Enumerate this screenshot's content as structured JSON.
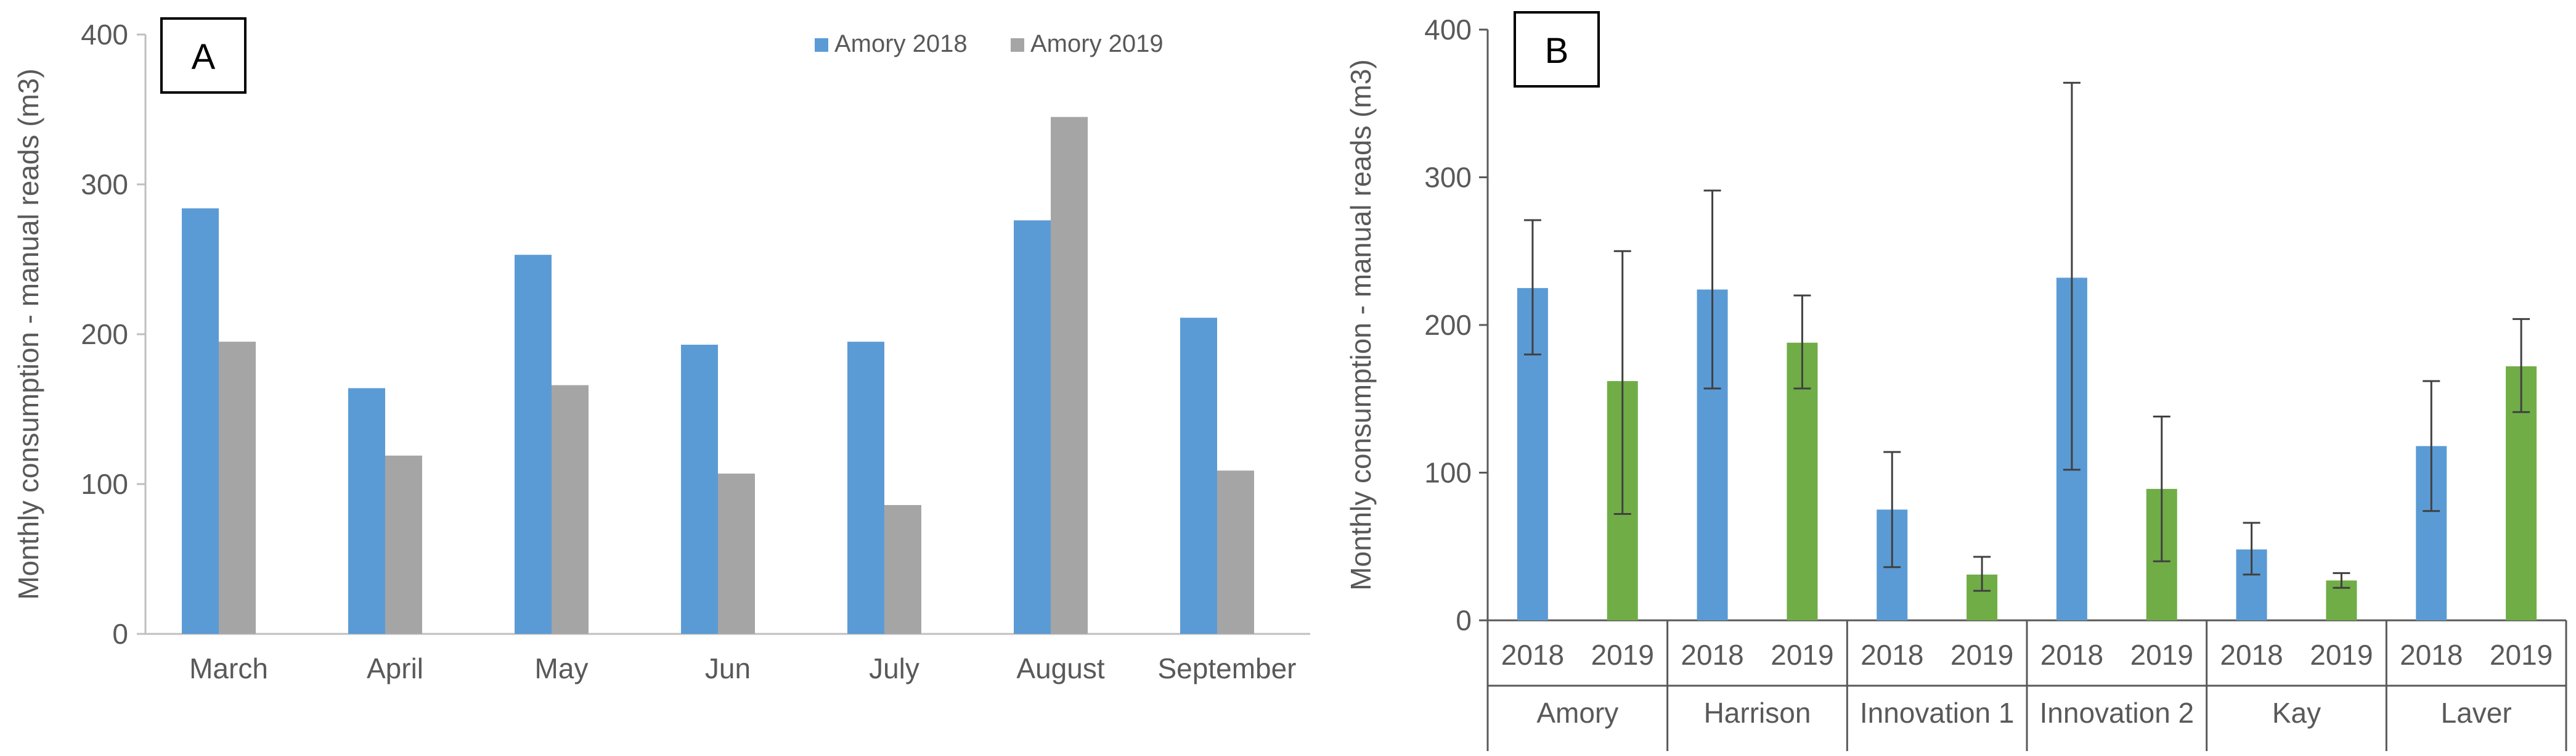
{
  "chart_data": [
    {
      "type": "bar",
      "panel_label": "A",
      "title": "",
      "xlabel": "",
      "ylabel": "Monthly consumption - manual reads (m3)",
      "ylim": [
        0,
        400
      ],
      "yticks": [
        0,
        100,
        200,
        300,
        400
      ],
      "categories": [
        "March",
        "April",
        "May",
        "Jun",
        "July",
        "August",
        "September"
      ],
      "series": [
        {
          "name": "Amory 2018",
          "color": "#5b9bd5",
          "values": [
            284,
            164,
            253,
            193,
            195,
            276,
            211
          ]
        },
        {
          "name": "Amory 2019",
          "color": "#a5a5a5",
          "values": [
            195,
            119,
            166,
            107,
            86,
            345,
            109
          ]
        }
      ],
      "legend": "top-right",
      "grid": false
    },
    {
      "type": "bar",
      "panel_label": "B",
      "title": "",
      "xlabel": "",
      "ylabel": "Monthly consumption - manual reads (m3)",
      "ylim": [
        0,
        400
      ],
      "yticks": [
        0,
        100,
        200,
        300,
        400
      ],
      "groups": [
        {
          "name": "Amory",
          "bars": [
            {
              "label": "2018",
              "value": 225,
              "err_low": 180,
              "err_high": 271,
              "color": "#5b9bd5"
            },
            {
              "label": "2019",
              "value": 162,
              "err_low": 72,
              "err_high": 250,
              "color": "#70ad47"
            }
          ]
        },
        {
          "name": "Harrison",
          "bars": [
            {
              "label": "2018",
              "value": 224,
              "err_low": 157,
              "err_high": 291,
              "color": "#5b9bd5"
            },
            {
              "label": "2019",
              "value": 188,
              "err_low": 157,
              "err_high": 220,
              "color": "#70ad47"
            }
          ]
        },
        {
          "name": "Innovation 1",
          "bars": [
            {
              "label": "2018",
              "value": 75,
              "err_low": 36,
              "err_high": 114,
              "color": "#5b9bd5"
            },
            {
              "label": "2019",
              "value": 31,
              "err_low": 20,
              "err_high": 43,
              "color": "#70ad47"
            }
          ]
        },
        {
          "name": "Innovation 2",
          "bars": [
            {
              "label": "2018",
              "value": 232,
              "err_low": 102,
              "err_high": 364,
              "color": "#5b9bd5"
            },
            {
              "label": "2019",
              "value": 89,
              "err_low": 40,
              "err_high": 138,
              "color": "#70ad47"
            }
          ]
        },
        {
          "name": "Kay",
          "bars": [
            {
              "label": "2018",
              "value": 48,
              "err_low": 31,
              "err_high": 66,
              "color": "#5b9bd5"
            },
            {
              "label": "2019",
              "value": 27,
              "err_low": 22,
              "err_high": 32,
              "color": "#70ad47"
            }
          ]
        },
        {
          "name": "Laver",
          "bars": [
            {
              "label": "2018",
              "value": 118,
              "err_low": 74,
              "err_high": 162,
              "color": "#5b9bd5"
            },
            {
              "label": "2019",
              "value": 172,
              "err_low": 141,
              "err_high": 204,
              "color": "#70ad47"
            }
          ]
        }
      ],
      "legend": "none",
      "grid": false
    }
  ]
}
